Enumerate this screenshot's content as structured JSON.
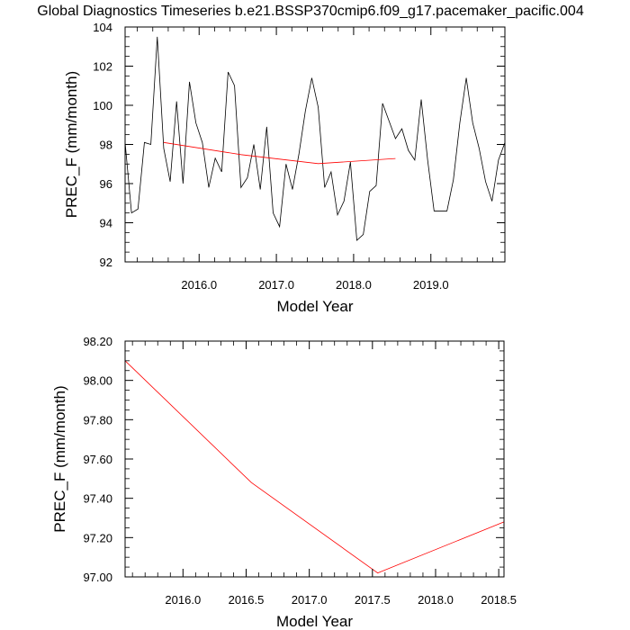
{
  "figure": {
    "title": "Global Diagnostics Timeseries b.e21.BSSP370cmip6.f09_g17.pacemaker_pacific.004"
  },
  "chart_data": [
    {
      "type": "line",
      "title": "",
      "xlabel": "Model Year",
      "ylabel": "PREC_F (mm/month)",
      "xlim": [
        2015.0417,
        2019.9583
      ],
      "ylim": [
        92,
        104
      ],
      "x_ticks": [
        2016.0,
        2017.0,
        2018.0,
        2019.0
      ],
      "x_tick_labels": [
        "2016.0",
        "2017.0",
        "2018.0",
        "2019.0"
      ],
      "x_minor_step": 0.2,
      "y_ticks": [
        92,
        94,
        96,
        98,
        100,
        102,
        104
      ],
      "y_tick_labels": [
        "92",
        "94",
        "96",
        "98",
        "100",
        "102",
        "104"
      ],
      "y_minor_step": 0.5,
      "grid": false,
      "series": [
        {
          "color": "#000000",
          "x": [
            2015.0417,
            2015.125,
            2015.2083,
            2015.2917,
            2015.375,
            2015.4583,
            2015.5417,
            2015.625,
            2015.7083,
            2015.7917,
            2015.875,
            2015.9583,
            2016.0417,
            2016.125,
            2016.2083,
            2016.2917,
            2016.375,
            2016.4583,
            2016.5417,
            2016.625,
            2016.7083,
            2016.7917,
            2016.875,
            2016.9583,
            2017.0417,
            2017.125,
            2017.2083,
            2017.2917,
            2017.375,
            2017.4583,
            2017.5417,
            2017.625,
            2017.7083,
            2017.7917,
            2017.875,
            2017.9583,
            2018.0417,
            2018.125,
            2018.2083,
            2018.2917,
            2018.375,
            2018.4583,
            2018.5417,
            2018.625,
            2018.7083,
            2018.7917,
            2018.875,
            2018.9583,
            2019.0417,
            2019.125,
            2019.2083,
            2019.2917,
            2019.375,
            2019.4583,
            2019.5417,
            2019.625,
            2019.7083,
            2019.7917,
            2019.875,
            2019.9583
          ],
          "y": [
            98.1,
            94.5,
            94.7,
            98.1,
            98.0,
            103.5,
            97.8,
            96.1,
            100.2,
            96.0,
            101.2,
            99.1,
            98.1,
            95.8,
            97.3,
            96.6,
            101.7,
            101.0,
            95.8,
            96.3,
            98.0,
            95.7,
            98.9,
            94.5,
            93.8,
            97.0,
            95.7,
            97.5,
            99.7,
            101.4,
            99.9,
            95.8,
            96.6,
            94.4,
            95.1,
            97.1,
            93.1,
            93.4,
            95.6,
            95.9,
            100.1,
            99.2,
            98.3,
            98.8,
            97.7,
            97.2,
            100.3,
            97.2,
            94.6,
            94.6,
            94.6,
            96.2,
            99.1,
            101.4,
            99.1,
            97.8,
            96.1,
            95.1,
            97.2,
            98.1
          ]
        },
        {
          "color": "#ff0000",
          "x": [
            2015.5417,
            2016.5417,
            2017.5417,
            2018.5417
          ],
          "y": [
            98.1,
            97.48,
            97.02,
            97.28
          ]
        }
      ]
    },
    {
      "type": "line",
      "title": "",
      "xlabel": "Model Year",
      "ylabel": "PREC_F (mm/month)",
      "xlim": [
        2015.5417,
        2018.5417
      ],
      "ylim": [
        97.0,
        98.2
      ],
      "x_ticks": [
        2016.0,
        2016.5,
        2017.0,
        2017.5,
        2018.0,
        2018.5
      ],
      "x_tick_labels": [
        "2016.0",
        "2016.5",
        "2017.0",
        "2017.5",
        "2018.0",
        "2018.5"
      ],
      "x_minor_step": 0.1,
      "y_ticks": [
        97.0,
        97.2,
        97.4,
        97.6,
        97.8,
        98.0,
        98.2
      ],
      "y_tick_labels": [
        "97.00",
        "97.20",
        "97.40",
        "97.60",
        "97.80",
        "98.00",
        "98.20"
      ],
      "y_minor_step": 0.05,
      "grid": false,
      "series": [
        {
          "color": "#ff0000",
          "x": [
            2015.5417,
            2016.5417,
            2017.5417,
            2018.5417
          ],
          "y": [
            98.1,
            97.48,
            97.02,
            97.28
          ]
        }
      ]
    }
  ]
}
